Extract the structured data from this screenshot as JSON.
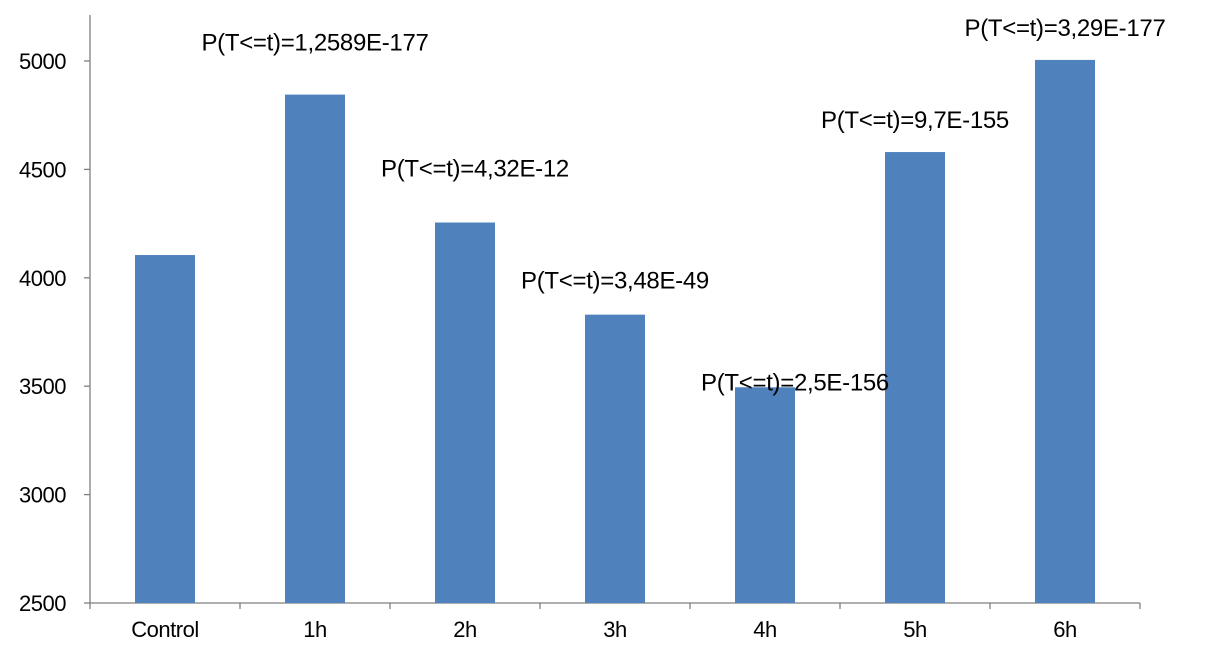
{
  "chart_data": {
    "type": "bar",
    "title": "",
    "xlabel": "",
    "ylabel": "",
    "categories": [
      "Control",
      "1h",
      "2h",
      "3h",
      "4h",
      "5h",
      "6h"
    ],
    "values": [
      4105,
      4845,
      4255,
      3830,
      3495,
      4580,
      5005
    ],
    "data_labels": [
      "",
      "P(T<=t)=1,2589E-177",
      "P(T<=t)=4,32E-12",
      "P(T<=t)=3,48E-49",
      "P(T<=t)=2,5E-156",
      "P(T<=t)=9,7E-155",
      "P(T<=t)=3,29E-177"
    ],
    "ylim": [
      2500,
      5000
    ],
    "yticks": [
      2500,
      3000,
      3500,
      4000,
      4500,
      5000
    ],
    "grid": false,
    "legend": "none",
    "bar_color": "#4f81bd"
  }
}
